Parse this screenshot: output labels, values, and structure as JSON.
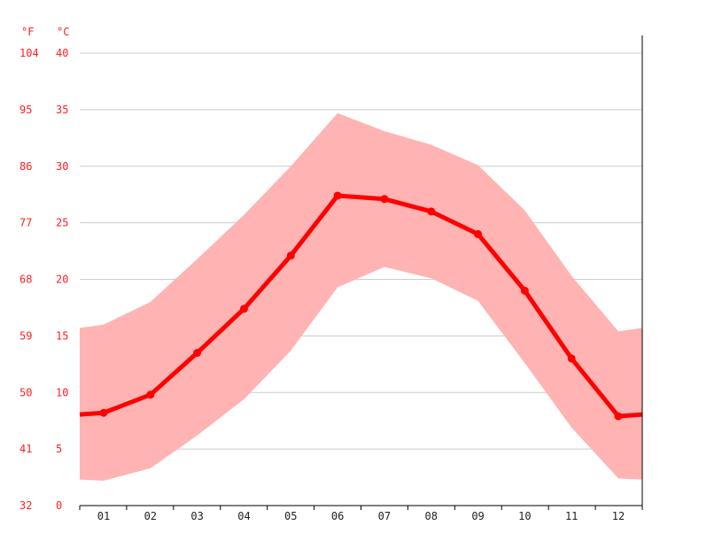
{
  "chart_data": {
    "type": "line",
    "title": "",
    "xlabel": "",
    "ylabel": "",
    "categories": [
      "01",
      "02",
      "03",
      "04",
      "05",
      "06",
      "07",
      "08",
      "09",
      "10",
      "11",
      "12"
    ],
    "ylim": [
      0,
      40
    ],
    "grid": true,
    "y_unit_left": "°F",
    "y_unit_right": "°C",
    "yticks_c": [
      "0",
      "5",
      "10",
      "15",
      "20",
      "25",
      "30",
      "35",
      "40"
    ],
    "yticks_f": [
      "32",
      "41",
      "50",
      "59",
      "68",
      "77",
      "86",
      "95",
      "104"
    ],
    "series": [
      {
        "role": "mean",
        "values": [
          8.2,
          9.8,
          13.5,
          17.4,
          22.1,
          27.4,
          27.1,
          26.0,
          24.0,
          19.0,
          13.0,
          7.9
        ]
      },
      {
        "role": "max",
        "values": [
          16.0,
          18.0,
          21.8,
          25.7,
          30.0,
          34.7,
          33.1,
          31.9,
          30.1,
          26.1,
          20.3,
          15.4
        ]
      },
      {
        "role": "min",
        "values": [
          2.2,
          3.3,
          6.2,
          9.4,
          13.7,
          19.3,
          21.1,
          20.1,
          18.1,
          12.6,
          6.9,
          2.4
        ]
      }
    ],
    "colors": {
      "line": "#ff0000",
      "band": "#ffb3b3",
      "grid": "#cccccc",
      "axis_text": "#ff2020"
    }
  }
}
